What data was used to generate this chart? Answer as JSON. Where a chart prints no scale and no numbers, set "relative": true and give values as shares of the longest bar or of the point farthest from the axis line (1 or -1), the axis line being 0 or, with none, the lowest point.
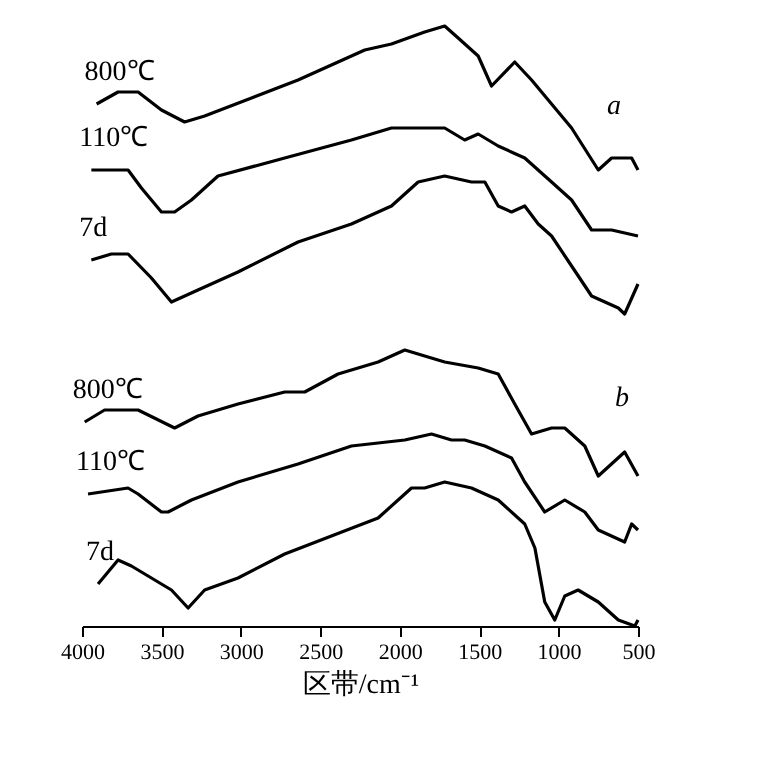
{
  "chart_data": {
    "type": "line",
    "relative": true,
    "xlabel": "区带/cm⁻¹",
    "xlim": [
      4000,
      500
    ],
    "xticks": [
      4000,
      3500,
      3000,
      2500,
      2000,
      1500,
      1000,
      500
    ],
    "grid": false,
    "legend": false,
    "annotations": [
      "a",
      "b"
    ],
    "series": [
      {
        "name": "800℃",
        "color": "#000000",
        "x": [
          3908,
          3773,
          3647,
          3500,
          3354,
          3228,
          2933,
          2640,
          2220,
          2052,
          1843,
          1717,
          1632,
          1506,
          1422,
          1276,
          1170,
          1044,
          918,
          750,
          666,
          540,
          500
        ],
        "values": [
          0.87,
          0.89,
          0.89,
          0.86,
          0.84,
          0.85,
          0.88,
          0.91,
          0.96,
          0.97,
          0.99,
          1,
          0.98,
          0.95,
          0.9,
          0.94,
          0.91,
          0.87,
          0.83,
          0.76,
          0.78,
          0.78,
          0.76
        ]
      },
      {
        "name": "110℃",
        "color": "#000000",
        "x": [
          3941,
          3710,
          3626,
          3500,
          3417,
          3311,
          3144,
          2724,
          2304,
          2052,
          1884,
          1717,
          1591,
          1506,
          1380,
          1213,
          1044,
          918,
          792,
          666,
          500
        ],
        "values": [
          0.76,
          0.76,
          0.73,
          0.69,
          0.69,
          0.71,
          0.75,
          0.78,
          0.81,
          0.83,
          0.83,
          0.83,
          0.81,
          0.82,
          0.8,
          0.78,
          0.74,
          0.71,
          0.66,
          0.66,
          0.65
        ]
      },
      {
        "name": "7d",
        "color": "#000000",
        "x": [
          3941,
          3815,
          3710,
          3563,
          3437,
          3270,
          3018,
          2640,
          2304,
          2052,
          1884,
          1717,
          1548,
          1464,
          1380,
          1296,
          1213,
          1128,
          1044,
          918,
          792,
          708,
          624,
          584,
          500
        ],
        "values": [
          0.61,
          0.62,
          0.62,
          0.58,
          0.54,
          0.56,
          0.59,
          0.64,
          0.67,
          0.7,
          0.74,
          0.75,
          0.74,
          0.74,
          0.7,
          0.69,
          0.7,
          0.67,
          0.65,
          0.6,
          0.55,
          0.54,
          0.53,
          0.52,
          0.57
        ]
      },
      {
        "name": "800℃",
        "color": "#000000",
        "x": [
          3983,
          3858,
          3647,
          3417,
          3270,
          3018,
          2724,
          2598,
          2388,
          2136,
          1968,
          1717,
          1506,
          1380,
          1276,
          1170,
          1044,
          961,
          835,
          750,
          584,
          500
        ],
        "values": [
          0.34,
          0.36,
          0.36,
          0.33,
          0.35,
          0.37,
          0.39,
          0.39,
          0.42,
          0.44,
          0.46,
          0.44,
          0.43,
          0.42,
          0.37,
          0.32,
          0.33,
          0.33,
          0.3,
          0.25,
          0.29,
          0.25
        ]
      },
      {
        "name": "110℃",
        "color": "#000000",
        "x": [
          3962,
          3710,
          3647,
          3500,
          3458,
          3311,
          3018,
          2640,
          2304,
          1968,
          1800,
          1674,
          1591,
          1464,
          1296,
          1213,
          1087,
          961,
          835,
          750,
          584,
          540,
          500
        ],
        "values": [
          0.22,
          0.23,
          0.22,
          0.19,
          0.19,
          0.21,
          0.24,
          0.27,
          0.3,
          0.31,
          0.32,
          0.31,
          0.31,
          0.3,
          0.28,
          0.24,
          0.19,
          0.21,
          0.19,
          0.16,
          0.14,
          0.17,
          0.16
        ]
      },
      {
        "name": "7d",
        "color": "#000000",
        "x": [
          3899,
          3773,
          3689,
          3563,
          3437,
          3332,
          3228,
          3018,
          2724,
          2430,
          2136,
          1926,
          1843,
          1717,
          1548,
          1380,
          1213,
          1149,
          1087,
          1024,
          961,
          877,
          750,
          624,
          520,
          500
        ],
        "values": [
          0.07,
          0.11,
          0.1,
          0.08,
          0.06,
          0.03,
          0.06,
          0.08,
          0.12,
          0.15,
          0.18,
          0.23,
          0.23,
          0.24,
          0.23,
          0.21,
          0.17,
          0.13,
          0.04,
          0.01,
          0.05,
          0.06,
          0.04,
          0.01,
          0,
          0.01
        ]
      }
    ]
  }
}
